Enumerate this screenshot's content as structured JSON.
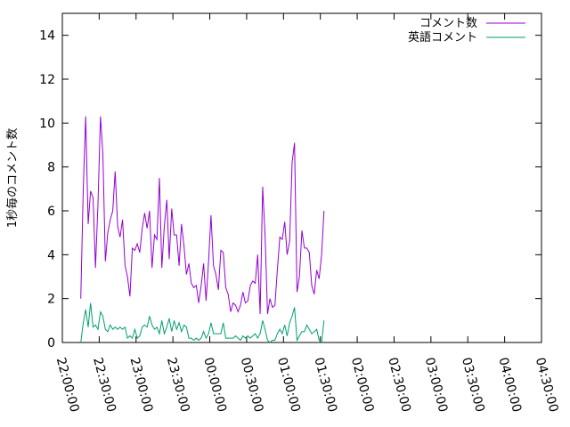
{
  "chart_data": {
    "type": "line",
    "title": "",
    "xlabel": "",
    "ylabel": "1秒毎のコメント数",
    "xlim": [
      "22:00:00",
      "04:30:00"
    ],
    "ylim": [
      0,
      15
    ],
    "grid": false,
    "legend_position": "top-right",
    "x_ticks": [
      "22:00:00",
      "22:30:00",
      "23:00:00",
      "23:30:00",
      "00:00:00",
      "00:30:00",
      "01:00:00",
      "01:30:00",
      "02:00:00",
      "02:30:00",
      "03:00:00",
      "03:30:00",
      "04:00:00",
      "04:30:00"
    ],
    "y_ticks": [
      0,
      2,
      4,
      6,
      8,
      10,
      12,
      14
    ],
    "x_start": "22:15:00",
    "x_step_minutes": 2,
    "series": [
      {
        "name": "コメント数",
        "color": "#9400d3",
        "values": [
          2.0,
          7.0,
          10.3,
          5.4,
          6.9,
          6.6,
          3.4,
          6.3,
          10.3,
          8.6,
          3.7,
          5.0,
          5.6,
          6.0,
          7.8,
          5.3,
          4.8,
          5.6,
          3.5,
          3.0,
          2.1,
          4.3,
          4.2,
          4.5,
          4.1,
          5.2,
          5.9,
          5.2,
          6.0,
          3.4,
          4.9,
          4.7,
          7.5,
          3.4,
          5.3,
          6.5,
          3.8,
          6.1,
          4.9,
          4.9,
          3.5,
          5.4,
          4.4,
          3.1,
          3.6,
          2.7,
          2.5,
          2.6,
          1.8,
          2.6,
          3.6,
          1.9,
          3.7,
          5.8,
          3.5,
          3.1,
          2.4,
          4.2,
          4.1,
          2.5,
          2.2,
          1.4,
          1.8,
          1.7,
          1.4,
          1.7,
          2.3,
          1.8,
          1.9,
          2.6,
          2.8,
          2.7,
          4.0,
          1.3,
          7.1,
          4.9,
          1.3,
          2.0,
          1.6,
          1.7,
          3.3,
          4.8,
          4.7,
          5.5,
          4.0,
          4.6,
          8.2,
          9.1,
          2.3,
          3.0,
          5.1,
          4.3,
          4.3,
          4.1,
          2.6,
          2.2,
          3.3,
          2.9,
          4.0,
          6.0
        ]
      },
      {
        "name": "英語コメント",
        "color": "#009e73",
        "values": [
          0.0,
          0.9,
          1.5,
          0.7,
          1.8,
          0.7,
          0.8,
          0.6,
          1.4,
          1.2,
          0.6,
          0.5,
          0.8,
          0.6,
          0.7,
          0.6,
          0.7,
          0.6,
          0.7,
          0.2,
          0.3,
          0.2,
          0.6,
          0.2,
          0.3,
          0.7,
          0.8,
          0.7,
          1.2,
          0.8,
          0.6,
          0.7,
          0.4,
          1.0,
          0.4,
          0.7,
          1.1,
          0.5,
          1.0,
          0.6,
          0.9,
          0.5,
          0.8,
          0.7,
          0.2,
          0.2,
          0.1,
          0.2,
          0.1,
          0.2,
          0.5,
          0.2,
          0.4,
          0.9,
          0.4,
          0.4,
          0.4,
          0.4,
          0.9,
          0.2,
          0.2,
          0.2,
          0.2,
          0.3,
          0.2,
          0.1,
          0.3,
          0.2,
          0.3,
          0.2,
          0.3,
          0.4,
          0.2,
          0.4,
          1.0,
          0.6,
          0.1,
          0.0,
          0.1,
          0.1,
          0.4,
          0.6,
          0.4,
          0.8,
          0.3,
          0.9,
          1.2,
          1.6,
          0.1,
          0.3,
          0.5,
          0.5,
          0.8,
          0.6,
          0.4,
          0.5,
          0.6,
          0.1,
          0.0,
          1.0
        ]
      }
    ]
  }
}
